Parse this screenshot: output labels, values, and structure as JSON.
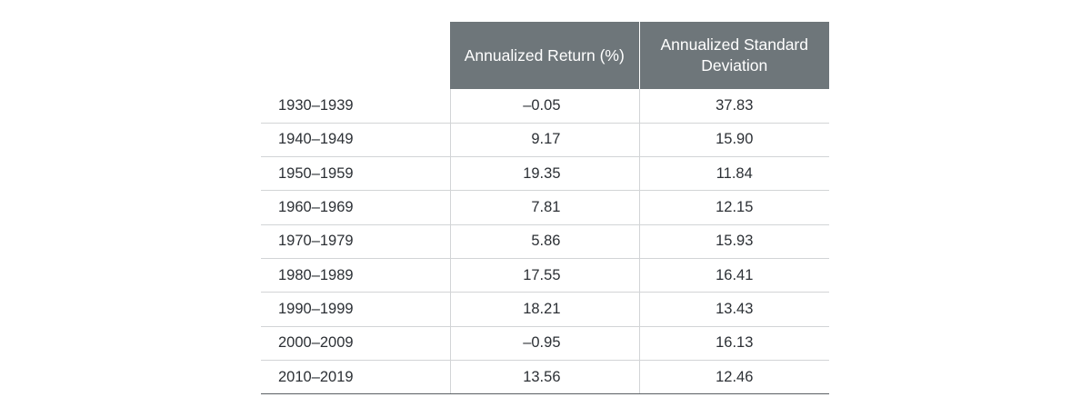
{
  "chart_data": {
    "type": "table",
    "columns": [
      "",
      "Annualized Return (%)",
      "Annualized Standard Deviation"
    ],
    "headers": {
      "return_label": "Annualized Return (%)",
      "std_label": "Annualized Standard Deviation"
    },
    "rows": [
      {
        "period": "1930–1939",
        "return": "–0.05",
        "std": "37.83"
      },
      {
        "period": "1940–1949",
        "return": "9.17",
        "std": "15.90"
      },
      {
        "period": "1950–1959",
        "return": "19.35",
        "std": "11.84"
      },
      {
        "period": "1960–1969",
        "return": "7.81",
        "std": "12.15"
      },
      {
        "period": "1970–1979",
        "return": "5.86",
        "std": "15.93"
      },
      {
        "period": "1980–1989",
        "return": "17.55",
        "std": "16.41"
      },
      {
        "period": "1990–1999",
        "return": "18.21",
        "std": "13.43"
      },
      {
        "period": "2000–2009",
        "return": "–0.95",
        "std": "16.13"
      },
      {
        "period": "2010–2019",
        "return": "13.56",
        "std": "12.46"
      }
    ]
  },
  "colors": {
    "header_bg": "#6e767a",
    "header_text": "#ffffff",
    "body_text": "#2c3035",
    "row_divider": "#d2d4d6",
    "bottom_rule": "#5a5f63"
  }
}
